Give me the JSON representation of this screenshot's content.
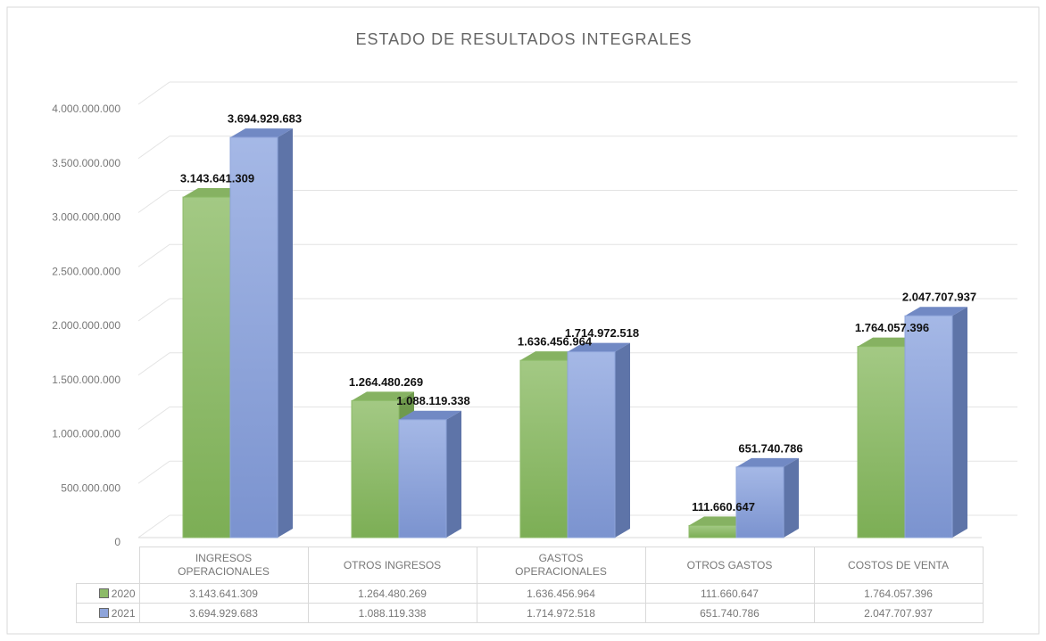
{
  "chart_data": {
    "type": "bar",
    "title": "ESTADO DE RESULTADOS INTEGRALES",
    "categories": [
      "INGRESOS OPERACIONALES",
      "OTROS INGRESOS",
      "GASTOS OPERACIONALES",
      "OTROS GASTOS",
      "COSTOS DE VENTA"
    ],
    "series": [
      {
        "name": "2020",
        "color": "#8dbb68",
        "values": [
          3143641309,
          1264480269,
          1636456964,
          111660647,
          1764057396
        ],
        "value_labels": [
          "3.143.641.309",
          "1.264.480.269",
          "1.636.456.964",
          "111.660.647",
          "1.764.057.396"
        ]
      },
      {
        "name": "2021",
        "color": "#8ea4da",
        "values": [
          3694929683,
          1088119338,
          1714972518,
          651740786,
          2047707937
        ],
        "value_labels": [
          "3.694.929.683",
          "1.088.119.338",
          "1.714.972.518",
          "651.740.786",
          "2.047.707.937"
        ]
      }
    ],
    "ylim": [
      0,
      4000000000
    ],
    "yticks": [
      0,
      {
        "value": 500000000,
        "label": "500.000.000"
      },
      {
        "value": 1000000000,
        "label": "1.000.000.000"
      },
      {
        "value": 1500000000,
        "label": "1.500.000.000"
      },
      {
        "value": 2000000000,
        "label": "2.000.000.000"
      },
      {
        "value": 2500000000,
        "label": "2.500.000.000"
      },
      {
        "value": 3000000000,
        "label": "3.000.000.000"
      },
      {
        "value": 3500000000,
        "label": "3.500.000.000"
      },
      {
        "value": 4000000000,
        "label": "4.000.000.000"
      }
    ],
    "grid": true,
    "data_table": true
  }
}
